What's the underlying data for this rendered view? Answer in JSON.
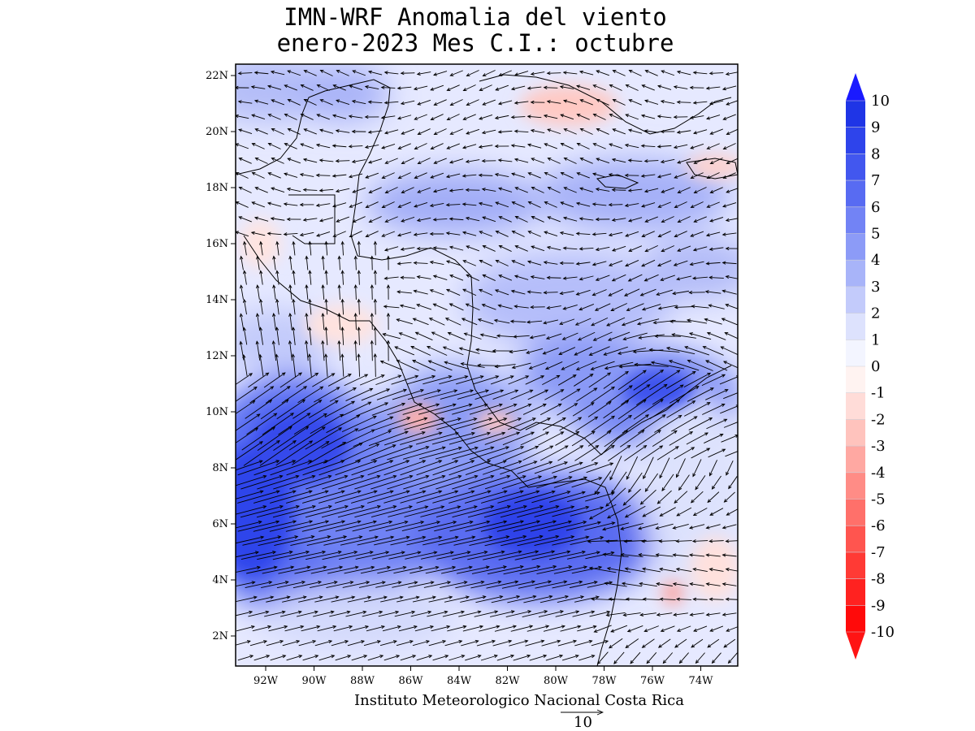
{
  "title": {
    "line1": "IMN-WRF Anomalia del viento",
    "line2": "enero-2023 Mes C.I.: octubre"
  },
  "axes": {
    "lat_ticks": [
      "2N",
      "4N",
      "6N",
      "8N",
      "10N",
      "12N",
      "14N",
      "16N",
      "18N",
      "20N",
      "22N"
    ],
    "lon_ticks": [
      "92W",
      "90W",
      "88W",
      "86W",
      "84W",
      "82W",
      "80W",
      "78W",
      "76W",
      "74W"
    ]
  },
  "colorbar": {
    "labels": [
      "10",
      "9",
      "8",
      "7",
      "6",
      "5",
      "4",
      "3",
      "2",
      "1",
      "0",
      "-1",
      "-2",
      "-3",
      "-4",
      "-5",
      "-6",
      "-7",
      "-8",
      "-9",
      "-10"
    ],
    "colors_top_to_bottom": [
      "#1f35e6",
      "#2e44eb",
      "#4257ef",
      "#586bf2",
      "#7283f5",
      "#8c9bf7",
      "#a8b4f9",
      "#c3cbfb",
      "#dde2fd",
      "#f3f5ff",
      "#fff3f1",
      "#ffdcd8",
      "#ffc3bd",
      "#ffa8a2",
      "#ff8c86",
      "#ff706a",
      "#ff554f",
      "#ff3a35",
      "#ff2220",
      "#ff0a0a"
    ],
    "arrow_top_color": "#1a1aff",
    "arrow_bottom_color": "#ff1414"
  },
  "credit": "Instituto Meteorologico Nacional Costa Rica",
  "reference_vector": {
    "value": "10"
  },
  "colors": {
    "background_field": "#e8ebff",
    "strong_anomaly": "#3a4ff0",
    "weak_negative": "#ffd9d4",
    "coastline": "#000000"
  }
}
